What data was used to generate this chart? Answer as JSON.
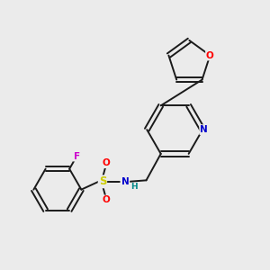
{
  "background_color": "#ebebeb",
  "bond_color": "#1a1a1a",
  "atom_colors": {
    "O": "#ff0000",
    "N": "#0000cc",
    "S": "#cccc00",
    "F": "#cc00cc",
    "H": "#008888",
    "C": "#1a1a1a"
  },
  "figsize": [
    3.0,
    3.0
  ],
  "dpi": 100
}
